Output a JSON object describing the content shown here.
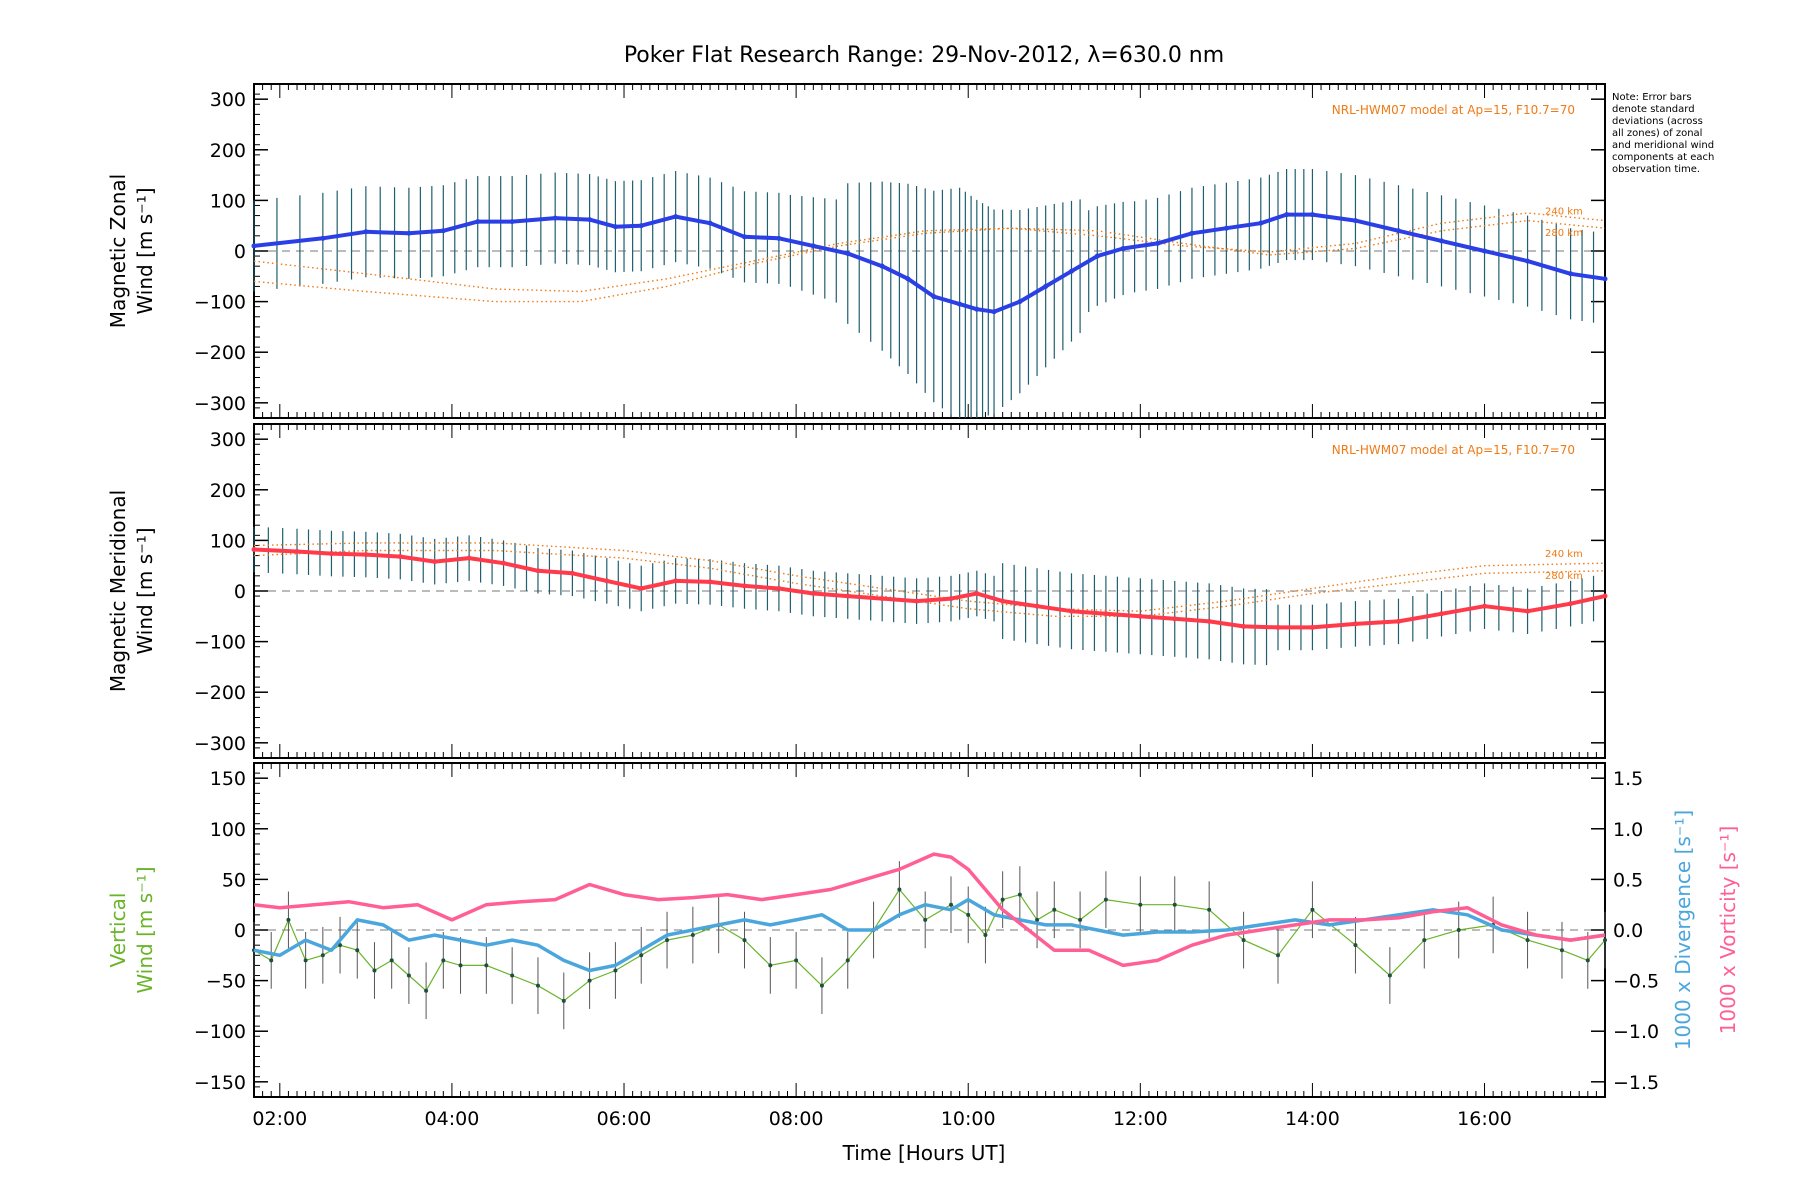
{
  "title": "Poker Flat Research Range: 29-Nov-2012, λ=630.0 nm",
  "note": "Note: Error bars denote standard deviations (across all zones) of zonal and meridional wind components at each observation time.",
  "model_label": "NRL-HWM07 model at Ap=15, F10.7=70",
  "model_heights": [
    "240 km",
    "280 km"
  ],
  "xlabel": "Time [Hours UT]",
  "colors": {
    "zonal": "#2b3fe6",
    "meridional": "#ff3a4a",
    "model": "#f07a14",
    "vertical": "#6ab42a",
    "divergence": "#4aa6dc",
    "vorticity": "#ff5f93",
    "errbar": "#1f5f6f"
  },
  "chart_data": [
    {
      "type": "line",
      "panel": "zonal",
      "ylabel_line1": "Magnetic Zonal",
      "ylabel_line2": "Wind [m s⁻¹]",
      "xlim": [
        1.7,
        17.4
      ],
      "ylim": [
        -330,
        330
      ],
      "xticks": [
        2,
        4,
        6,
        8,
        10,
        12,
        14,
        16
      ],
      "xtick_labels": [
        "02:00",
        "04:00",
        "06:00",
        "08:00",
        "10:00",
        "12:00",
        "14:00",
        "16:00"
      ],
      "yticks": [
        -300,
        -200,
        -100,
        0,
        100,
        200,
        300
      ],
      "series": [
        {
          "x": [
            1.7,
            2.5,
            3.0,
            3.5,
            3.9,
            4.3,
            4.7,
            5.2,
            5.6,
            5.9,
            6.2,
            6.6,
            7.0,
            7.4,
            7.8,
            8.2,
            8.6,
            9.0,
            9.3,
            9.6,
            9.9,
            10.1,
            10.3,
            10.6,
            10.9,
            11.2,
            11.5,
            11.8,
            12.2,
            12.6,
            13.0,
            13.4,
            13.7,
            14.0,
            14.5,
            15.0,
            15.5,
            16.0,
            16.5,
            17.0,
            17.4
          ],
          "y": [
            10,
            25,
            38,
            35,
            40,
            58,
            58,
            65,
            62,
            48,
            50,
            68,
            55,
            28,
            25,
            10,
            -5,
            -30,
            -55,
            -90,
            -105,
            -115,
            -120,
            -100,
            -70,
            -40,
            -10,
            5,
            15,
            35,
            45,
            55,
            72,
            72,
            60,
            40,
            20,
            0,
            -20,
            -45,
            -55
          ]
        }
      ],
      "model": [
        {
          "name": "240 km",
          "x": [
            1.7,
            3.0,
            4.5,
            5.5,
            6.5,
            7.5,
            8.5,
            9.5,
            10.5,
            11.5,
            12.5,
            13.5,
            14.5,
            15.5,
            16.5,
            17.4
          ],
          "y": [
            -20,
            -45,
            -75,
            -80,
            -55,
            -20,
            15,
            40,
            45,
            30,
            10,
            -2,
            15,
            55,
            75,
            60
          ]
        },
        {
          "name": "280 km",
          "x": [
            1.7,
            3.0,
            4.5,
            5.5,
            6.5,
            7.5,
            8.5,
            9.5,
            10.5,
            11.5,
            12.5,
            13.5,
            14.5,
            15.5,
            16.5,
            17.4
          ],
          "y": [
            -60,
            -80,
            -100,
            -100,
            -70,
            -25,
            10,
            35,
            45,
            40,
            15,
            -8,
            5,
            40,
            60,
            45
          ]
        }
      ]
    },
    {
      "type": "line",
      "panel": "meridional",
      "ylabel_line1": "Magnetic Meridional",
      "ylabel_line2": "Wind [m s⁻¹]",
      "xlim": [
        1.7,
        17.4
      ],
      "ylim": [
        -330,
        330
      ],
      "yticks": [
        -300,
        -200,
        -100,
        0,
        100,
        200,
        300
      ],
      "series": [
        {
          "x": [
            1.7,
            2.2,
            2.6,
            3.0,
            3.4,
            3.8,
            4.2,
            4.6,
            5.0,
            5.4,
            5.8,
            6.2,
            6.6,
            7.0,
            7.4,
            7.8,
            8.2,
            8.6,
            9.0,
            9.4,
            9.8,
            10.1,
            10.4,
            10.8,
            11.2,
            11.6,
            12.0,
            12.4,
            12.8,
            13.2,
            13.6,
            14.0,
            14.5,
            15.0,
            15.5,
            16.0,
            16.5,
            17.0,
            17.4
          ],
          "y": [
            82,
            78,
            74,
            72,
            68,
            58,
            65,
            55,
            40,
            35,
            20,
            5,
            20,
            18,
            10,
            5,
            -5,
            -10,
            -15,
            -20,
            -15,
            -5,
            -20,
            -30,
            -40,
            -45,
            -50,
            -55,
            -60,
            -70,
            -72,
            -72,
            -65,
            -60,
            -45,
            -30,
            -40,
            -25,
            -10
          ]
        }
      ],
      "model": [
        {
          "name": "240 km",
          "x": [
            1.7,
            3.0,
            4.5,
            6.0,
            7.0,
            8.0,
            9.0,
            10.0,
            11.0,
            12.0,
            13.0,
            14.0,
            15.0,
            16.0,
            17.4
          ],
          "y": [
            90,
            95,
            95,
            80,
            60,
            30,
            5,
            -20,
            -35,
            -40,
            -20,
            5,
            30,
            50,
            55
          ]
        },
        {
          "name": "280 km",
          "x": [
            1.7,
            3.0,
            4.5,
            6.0,
            7.0,
            8.0,
            9.0,
            10.0,
            11.0,
            12.0,
            13.0,
            14.0,
            15.0,
            16.0,
            17.4
          ],
          "y": [
            70,
            80,
            80,
            65,
            45,
            15,
            -10,
            -35,
            -50,
            -50,
            -30,
            -5,
            15,
            35,
            40
          ]
        }
      ]
    },
    {
      "type": "line",
      "panel": "vertical",
      "ylabel_line1": "Vertical",
      "ylabel_line2": "Wind [m s⁻¹]",
      "ylabel_right1": "1000 x Divergence [s⁻¹]",
      "ylabel_right2": "1000 x Vorticity [s⁻¹]",
      "xlim": [
        1.7,
        17.4
      ],
      "ylim": [
        -165,
        165
      ],
      "yticks": [
        -150,
        -100,
        -50,
        0,
        50,
        100,
        150
      ],
      "ylim_right": [
        -1.65,
        1.65
      ],
      "yticks_right": [
        -1.5,
        -1.0,
        -0.5,
        0.0,
        0.5,
        1.0,
        1.5
      ],
      "vertical": {
        "x": [
          1.7,
          1.9,
          2.1,
          2.3,
          2.5,
          2.7,
          2.9,
          3.1,
          3.3,
          3.5,
          3.7,
          3.9,
          4.1,
          4.4,
          4.7,
          5.0,
          5.3,
          5.6,
          5.9,
          6.2,
          6.5,
          6.8,
          7.1,
          7.4,
          7.7,
          8.0,
          8.3,
          8.6,
          8.9,
          9.2,
          9.5,
          9.8,
          10.0,
          10.2,
          10.4,
          10.6,
          10.8,
          11.0,
          11.3,
          11.6,
          12.0,
          12.4,
          12.8,
          13.2,
          13.6,
          14.0,
          14.5,
          14.9,
          15.3,
          15.7,
          16.1,
          16.5,
          16.9,
          17.2,
          17.4
        ],
        "y": [
          -20,
          -30,
          10,
          -30,
          -25,
          -15,
          -20,
          -40,
          -30,
          -45,
          -60,
          -30,
          -35,
          -35,
          -45,
          -55,
          -70,
          -50,
          -40,
          -25,
          -10,
          -5,
          5,
          -10,
          -35,
          -30,
          -55,
          -30,
          0,
          40,
          10,
          25,
          15,
          -5,
          30,
          35,
          10,
          20,
          10,
          30,
          25,
          25,
          20,
          -10,
          -25,
          20,
          -15,
          -45,
          -10,
          0,
          5,
          -10,
          -20,
          -30,
          -10
        ]
      },
      "divergence": {
        "x": [
          1.7,
          2.0,
          2.3,
          2.6,
          2.9,
          3.2,
          3.5,
          3.8,
          4.1,
          4.4,
          4.7,
          5.0,
          5.3,
          5.6,
          5.9,
          6.2,
          6.5,
          6.8,
          7.1,
          7.4,
          7.7,
          8.0,
          8.3,
          8.6,
          8.9,
          9.2,
          9.5,
          9.8,
          10.0,
          10.3,
          10.6,
          10.9,
          11.2,
          11.5,
          11.8,
          12.2,
          12.6,
          13.0,
          13.4,
          13.8,
          14.2,
          14.6,
          15.0,
          15.4,
          15.8,
          16.2,
          16.6,
          17.0,
          17.4
        ],
        "y": [
          -0.2,
          -0.25,
          -0.1,
          -0.2,
          0.1,
          0.05,
          -0.1,
          -0.05,
          -0.1,
          -0.15,
          -0.1,
          -0.15,
          -0.3,
          -0.4,
          -0.35,
          -0.2,
          -0.05,
          0.0,
          0.05,
          0.1,
          0.05,
          0.1,
          0.15,
          0.0,
          0.0,
          0.15,
          0.25,
          0.2,
          0.3,
          0.15,
          0.1,
          0.05,
          0.05,
          0.0,
          -0.05,
          -0.02,
          -0.02,
          0.0,
          0.05,
          0.1,
          0.05,
          0.1,
          0.15,
          0.2,
          0.15,
          0.0,
          -0.05,
          -0.1,
          -0.05
        ]
      },
      "vorticity": {
        "x": [
          1.7,
          2.0,
          2.4,
          2.8,
          3.2,
          3.6,
          4.0,
          4.4,
          4.8,
          5.2,
          5.6,
          6.0,
          6.4,
          6.8,
          7.2,
          7.6,
          8.0,
          8.4,
          8.8,
          9.2,
          9.6,
          9.8,
          10.0,
          10.2,
          10.4,
          10.7,
          11.0,
          11.4,
          11.8,
          12.2,
          12.6,
          13.0,
          13.4,
          13.8,
          14.2,
          14.6,
          15.0,
          15.4,
          15.8,
          16.2,
          16.6,
          17.0,
          17.4
        ],
        "y": [
          0.25,
          0.22,
          0.25,
          0.28,
          0.22,
          0.25,
          0.1,
          0.25,
          0.28,
          0.3,
          0.45,
          0.35,
          0.3,
          0.32,
          0.35,
          0.3,
          0.35,
          0.4,
          0.5,
          0.6,
          0.75,
          0.72,
          0.6,
          0.4,
          0.2,
          0.0,
          -0.2,
          -0.2,
          -0.35,
          -0.3,
          -0.15,
          -0.05,
          0.0,
          0.05,
          0.1,
          0.1,
          0.12,
          0.18,
          0.22,
          0.05,
          -0.05,
          -0.1,
          -0.05
        ]
      }
    }
  ]
}
